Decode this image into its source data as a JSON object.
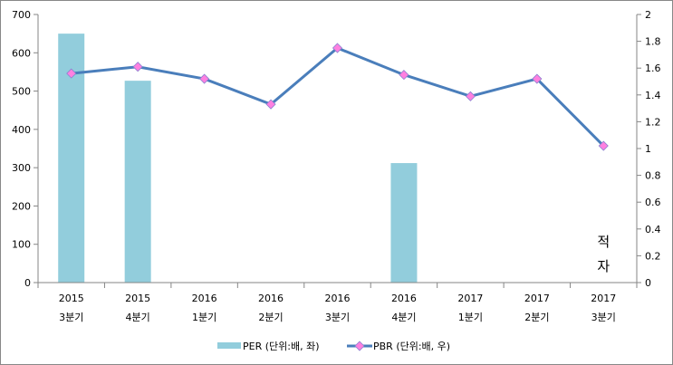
{
  "chart_data": {
    "type": "bar+line",
    "categories": [
      [
        "2015",
        "3분기"
      ],
      [
        "2015",
        "4분기"
      ],
      [
        "2016",
        "1분기"
      ],
      [
        "2016",
        "2분기"
      ],
      [
        "2016",
        "3분기"
      ],
      [
        "2016",
        "4분기"
      ],
      [
        "2017",
        "1분기"
      ],
      [
        "2017",
        "2분기"
      ],
      [
        "2017",
        "3분기"
      ]
    ],
    "series": [
      {
        "name": "PER (단위:배, 좌)",
        "type": "bar",
        "axis": "left",
        "color": "#92CDDC",
        "values": [
          650,
          527,
          null,
          null,
          null,
          312,
          null,
          null,
          null
        ]
      },
      {
        "name": "PBR (단위:배, 우)",
        "type": "line",
        "axis": "right",
        "color": "#4A7EBB",
        "marker_color": "#FF80E0",
        "values": [
          1.56,
          1.61,
          1.52,
          1.33,
          1.75,
          1.55,
          1.39,
          1.52,
          1.02
        ]
      }
    ],
    "left_axis": {
      "min": 0,
      "max": 700,
      "ticks": [
        "0",
        "100",
        "200",
        "300",
        "400",
        "500",
        "600",
        "700"
      ]
    },
    "right_axis": {
      "min": 0,
      "max": 2,
      "ticks": [
        "0",
        "0.2",
        "0.4",
        "0.6",
        "0.8",
        "1",
        "1.2",
        "1.4",
        "1.6",
        "1.8",
        "2"
      ]
    },
    "annotation": {
      "category_index": 8,
      "lines": [
        "적",
        "자"
      ]
    },
    "legend_position": "bottom",
    "grid": false
  }
}
